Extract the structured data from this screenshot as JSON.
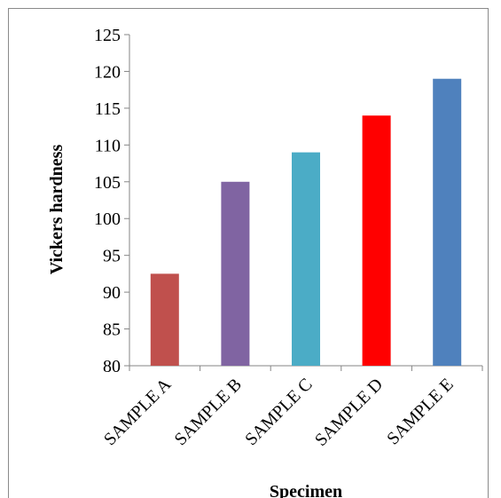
{
  "chart_data": {
    "type": "bar",
    "categories": [
      "SAMPLE A",
      "SAMPLE B",
      "SAMPLE C",
      "SAMPLE D",
      "SAMPLE E"
    ],
    "values": [
      92.5,
      105,
      109,
      114,
      119
    ],
    "colors": [
      "#c0504d",
      "#8064a2",
      "#4bacc6",
      "#ff0000",
      "#4f81bd"
    ],
    "xlabel": "Specimen",
    "ylabel": "Vickers hardness",
    "ylim": [
      80,
      125
    ],
    "yticks": [
      80,
      85,
      90,
      95,
      100,
      105,
      110,
      115,
      120,
      125
    ],
    "grid": false,
    "legend": "none"
  }
}
